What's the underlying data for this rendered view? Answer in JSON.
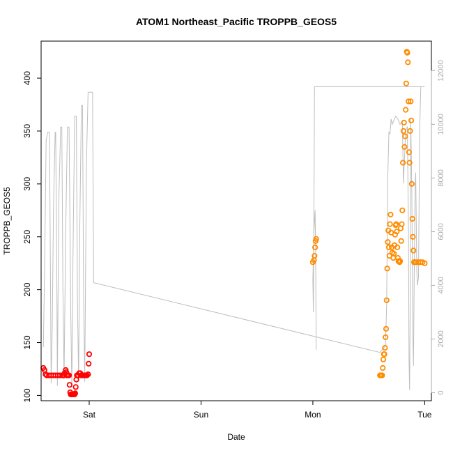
{
  "chart_data": {
    "type": "scatter",
    "title": "ATOM1 Northeast_Pacific TROPPB_GEOS5",
    "xlabel": "Date",
    "ylabel": "TROPPB_GEOS5",
    "x_tick_labels": [
      "Sat",
      "Sun",
      "Mon",
      "Tue"
    ],
    "x_ticks": [
      1.0,
      2.0,
      3.0,
      4.0
    ],
    "xlim": [
      0.57,
      4.06
    ],
    "y_ticks": [
      100,
      150,
      200,
      250,
      300,
      350,
      400
    ],
    "ylim": [
      95,
      435
    ],
    "y2_ticks": [
      0,
      2000,
      4000,
      6000,
      8000,
      10000,
      12000
    ],
    "y2_tick_labels": [
      "0",
      "2000",
      "4000",
      "6000",
      "8000",
      "10000",
      "12000"
    ],
    "y2lim": [
      -300,
      13100
    ],
    "colors": {
      "series_early": "#ff0000",
      "series_late": "#ff8c00",
      "altitude_line": "#bebebe"
    },
    "series": [
      {
        "values_xy": [
          [
            0.59,
            126
          ],
          [
            0.6,
            124
          ],
          [
            0.61,
            120
          ],
          [
            0.62,
            119
          ],
          [
            0.64,
            119
          ],
          [
            0.66,
            119
          ],
          [
            0.68,
            119
          ],
          [
            0.7,
            119
          ],
          [
            0.72,
            119
          ],
          [
            0.74,
            119
          ],
          [
            0.76,
            119
          ],
          [
            0.77,
            119
          ],
          [
            0.78,
            121
          ],
          [
            0.79,
            124
          ],
          [
            0.795,
            122
          ],
          [
            0.8,
            119
          ],
          [
            0.81,
            119
          ],
          [
            0.82,
            119
          ],
          [
            0.825,
            110
          ],
          [
            0.83,
            103
          ],
          [
            0.835,
            101
          ],
          [
            0.84,
            101
          ],
          [
            0.85,
            101
          ],
          [
            0.86,
            101
          ],
          [
            0.87,
            101
          ],
          [
            0.875,
            102
          ],
          [
            0.88,
            108
          ],
          [
            0.885,
            115
          ],
          [
            0.89,
            119
          ],
          [
            0.9,
            119
          ],
          [
            0.91,
            121
          ],
          [
            0.92,
            121
          ],
          [
            0.93,
            119
          ],
          [
            0.94,
            119
          ],
          [
            0.95,
            119
          ],
          [
            0.96,
            119
          ],
          [
            0.97,
            119
          ],
          [
            0.98,
            119
          ],
          [
            0.99,
            120
          ],
          [
            0.995,
            130
          ],
          [
            1.0,
            139
          ]
        ]
      },
      {
        "values_xy": [
          [
            3.0,
            226
          ],
          [
            3.01,
            228
          ],
          [
            3.015,
            232
          ],
          [
            3.02,
            240
          ],
          [
            3.025,
            246
          ],
          [
            3.03,
            248
          ],
          [
            3.6,
            119
          ],
          [
            3.61,
            119
          ],
          [
            3.62,
            119
          ],
          [
            3.625,
            126
          ],
          [
            3.63,
            134
          ],
          [
            3.635,
            139
          ],
          [
            3.64,
            139
          ],
          [
            3.645,
            145
          ],
          [
            3.65,
            155
          ],
          [
            3.655,
            163
          ],
          [
            3.66,
            190
          ],
          [
            3.665,
            220
          ],
          [
            3.67,
            245
          ],
          [
            3.675,
            256
          ],
          [
            3.68,
            240
          ],
          [
            3.685,
            232
          ],
          [
            3.69,
            262
          ],
          [
            3.695,
            271
          ],
          [
            3.7,
            254
          ],
          [
            3.705,
            240
          ],
          [
            3.71,
            235
          ],
          [
            3.72,
            230
          ],
          [
            3.725,
            234
          ],
          [
            3.73,
            242
          ],
          [
            3.735,
            252
          ],
          [
            3.74,
            261
          ],
          [
            3.745,
            262
          ],
          [
            3.75,
            255
          ],
          [
            3.755,
            240
          ],
          [
            3.76,
            230
          ],
          [
            3.765,
            227
          ],
          [
            3.77,
            227
          ],
          [
            3.775,
            226
          ],
          [
            3.78,
            227
          ],
          [
            3.785,
            258
          ],
          [
            3.79,
            246
          ],
          [
            3.795,
            262
          ],
          [
            3.8,
            275
          ],
          [
            3.805,
            320
          ],
          [
            3.81,
            350
          ],
          [
            3.815,
            358
          ],
          [
            3.82,
            335
          ],
          [
            3.825,
            345
          ],
          [
            3.83,
            370
          ],
          [
            3.835,
            395
          ],
          [
            3.84,
            425
          ],
          [
            3.845,
            424
          ],
          [
            3.85,
            415
          ],
          [
            3.855,
            378
          ],
          [
            3.86,
            330
          ],
          [
            3.865,
            320
          ],
          [
            3.87,
            350
          ],
          [
            3.875,
            378
          ],
          [
            3.88,
            360
          ],
          [
            3.885,
            300
          ],
          [
            3.89,
            267
          ],
          [
            3.895,
            250
          ],
          [
            3.9,
            237
          ],
          [
            3.905,
            226
          ],
          [
            3.91,
            226
          ],
          [
            3.92,
            226
          ],
          [
            3.94,
            226
          ],
          [
            3.96,
            226
          ],
          [
            3.98,
            226
          ],
          [
            4.0,
            225
          ]
        ]
      },
      {
        "values_xy": [
          [
            0.59,
            1700
          ],
          [
            0.6,
            4200
          ],
          [
            0.615,
            9400
          ],
          [
            0.63,
            9700
          ],
          [
            0.645,
            9700
          ],
          [
            0.655,
            3500
          ],
          [
            0.66,
            350
          ],
          [
            0.67,
            2500
          ],
          [
            0.68,
            6800
          ],
          [
            0.695,
            9700
          ],
          [
            0.7,
            9700
          ],
          [
            0.71,
            4500
          ],
          [
            0.715,
            250
          ],
          [
            0.72,
            3000
          ],
          [
            0.73,
            7500
          ],
          [
            0.745,
            9900
          ],
          [
            0.755,
            9900
          ],
          [
            0.765,
            3800
          ],
          [
            0.775,
            500
          ],
          [
            0.79,
            6000
          ],
          [
            0.805,
            9900
          ],
          [
            0.82,
            9900
          ],
          [
            0.835,
            3000
          ],
          [
            0.845,
            200
          ],
          [
            0.855,
            5000
          ],
          [
            0.87,
            10300
          ],
          [
            0.885,
            10300
          ],
          [
            0.895,
            3600
          ],
          [
            0.905,
            400
          ],
          [
            0.915,
            6000
          ],
          [
            0.93,
            10700
          ],
          [
            0.94,
            10700
          ],
          [
            0.95,
            3600
          ],
          [
            0.96,
            400
          ],
          [
            0.975,
            8500
          ],
          [
            0.99,
            11200
          ],
          [
            1.0,
            11200
          ],
          [
            1.02,
            11200
          ],
          [
            1.03,
            11200
          ],
          [
            1.04,
            4100
          ],
          [
            3.6,
            1500
          ],
          [
            3.6,
            1500
          ],
          [
            3.62,
            1600
          ],
          [
            3.64,
            1700
          ],
          [
            3.65,
            1800
          ],
          [
            3.66,
            3300
          ],
          [
            3.67,
            8000
          ],
          [
            3.68,
            9700
          ],
          [
            3.69,
            9650
          ],
          [
            3.7,
            10200
          ],
          [
            3.71,
            10000
          ],
          [
            3.72,
            10100
          ],
          [
            3.74,
            10300
          ],
          [
            3.76,
            10200
          ],
          [
            3.78,
            10000
          ],
          [
            3.8,
            10100
          ],
          [
            3.81,
            7800
          ],
          [
            3.83,
            9800
          ],
          [
            3.845,
            9900
          ],
          [
            3.855,
            6000
          ],
          [
            3.86,
            1200
          ],
          [
            3.865,
            100
          ],
          [
            3.87,
            3000
          ],
          [
            3.875,
            10200
          ],
          [
            3.88,
            9000
          ],
          [
            3.885,
            7500
          ],
          [
            3.89,
            5000
          ],
          [
            3.895,
            2000
          ],
          [
            3.9,
            1000
          ],
          [
            3.905,
            3600
          ],
          [
            3.915,
            7800
          ],
          [
            3.92,
            8200
          ],
          [
            3.93,
            4500
          ],
          [
            3.935,
            4000
          ],
          [
            3.945,
            4300
          ],
          [
            3.955,
            9800
          ],
          [
            3.965,
            11400
          ],
          [
            3.975,
            11400
          ],
          [
            3.99,
            11400
          ],
          [
            4.0,
            11400
          ],
          [
            3.045,
            11400
          ],
          [
            3.03,
            11400
          ],
          [
            3.02,
            11400
          ],
          [
            3.015,
            11400
          ],
          [
            3.01,
            7000
          ],
          [
            3.005,
            3000
          ],
          [
            3.0,
            4200
          ],
          [
            3.01,
            6000
          ],
          [
            3.02,
            6800
          ],
          [
            3.025,
            5400
          ],
          [
            3.03,
            1600
          ]
        ]
      }
    ]
  }
}
